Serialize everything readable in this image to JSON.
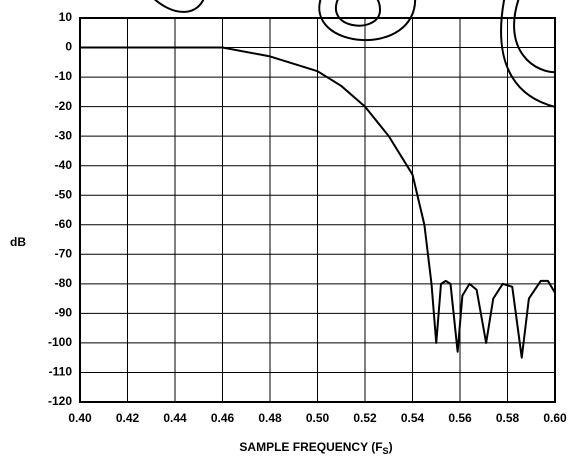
{
  "chart_data": {
    "type": "line",
    "ylabel": "dB",
    "xlabel": {
      "text": "SAMPLE FREQUENCY (F",
      "subscript": "S",
      "suffix": ")"
    },
    "x": [
      0.4,
      0.46,
      0.48,
      0.5,
      0.51,
      0.52,
      0.53,
      0.54,
      0.545,
      0.548,
      0.55,
      0.552,
      0.554,
      0.556,
      0.559,
      0.561,
      0.564,
      0.567,
      0.571,
      0.574,
      0.578,
      0.582,
      0.586,
      0.589,
      0.594,
      0.597,
      0.6
    ],
    "series": [
      {
        "color": "#000000",
        "values": [
          0,
          0,
          -3,
          -8,
          -13,
          -20,
          -30,
          -43,
          -60,
          -80,
          -100,
          -80,
          -79,
          -80,
          -103,
          -84,
          -80,
          -82,
          -100,
          -85,
          -80,
          -81,
          -105,
          -85,
          -79,
          -79,
          -83
        ]
      }
    ],
    "xlim": [
      0.4,
      0.6
    ],
    "xticks": [
      {
        "value": 0.4,
        "label": "0.40"
      },
      {
        "value": 0.42,
        "label": "0.42"
      },
      {
        "value": 0.44,
        "label": "0.44"
      },
      {
        "value": 0.46,
        "label": "0.46"
      },
      {
        "value": 0.48,
        "label": "0.48"
      },
      {
        "value": 0.5,
        "label": "0.50"
      },
      {
        "value": 0.52,
        "label": "0.52"
      },
      {
        "value": 0.54,
        "label": "0.54"
      },
      {
        "value": 0.56,
        "label": "0.56"
      },
      {
        "value": 0.58,
        "label": "0.58"
      },
      {
        "value": 0.6,
        "label": "0.60"
      }
    ],
    "ylim": [
      -120,
      10
    ],
    "yticks": [
      10,
      0,
      -10,
      -20,
      -30,
      -40,
      -50,
      -60,
      -70,
      -80,
      -90,
      -100,
      -110,
      -120
    ],
    "grid": true
  }
}
